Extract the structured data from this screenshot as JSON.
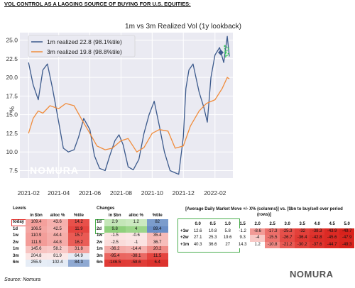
{
  "headline": "VOL CONTROL AS A LAGGING SOURCE OF BUYING FOR U.S. EQUITIES:",
  "watermark": "NOMURA",
  "chart_data": {
    "type": "line",
    "title": "1m vs 3m Realized Vol (1y lookback)",
    "ylabel": "%",
    "xlabel": "",
    "x_tick_labels": [
      "2021-02",
      "2021-04",
      "2021-06",
      "2021-08",
      "2021-10",
      "2021-12",
      "2022-02"
    ],
    "y_ticks": [
      7.5,
      10.0,
      12.5,
      15.0,
      17.5,
      20.0,
      22.5,
      25.0
    ],
    "ylim": [
      6.5,
      26.0
    ],
    "grid": true,
    "legend_position": "top-left",
    "series": [
      {
        "name": "1m realized 22.8 (98.1%tile)",
        "color": "#3c5a8c",
        "points": [
          [
            "2021-02-01",
            22.0
          ],
          [
            "2021-02-10",
            19.0
          ],
          [
            "2021-02-20",
            17.0
          ],
          [
            "2021-03-01",
            21.0
          ],
          [
            "2021-03-10",
            21.8
          ],
          [
            "2021-03-20",
            18.5
          ],
          [
            "2021-04-01",
            14.0
          ],
          [
            "2021-04-10",
            10.5
          ],
          [
            "2021-04-20",
            10.0
          ],
          [
            "2021-05-01",
            10.3
          ],
          [
            "2021-05-10",
            12.0
          ],
          [
            "2021-05-20",
            14.5
          ],
          [
            "2021-06-01",
            13.0
          ],
          [
            "2021-06-10",
            9.5
          ],
          [
            "2021-06-20",
            7.8
          ],
          [
            "2021-07-01",
            7.5
          ],
          [
            "2021-07-10",
            9.5
          ],
          [
            "2021-07-20",
            11.5
          ],
          [
            "2021-07-28",
            12.3
          ],
          [
            "2021-08-05",
            11.0
          ],
          [
            "2021-08-15",
            8.0
          ],
          [
            "2021-08-25",
            7.6
          ],
          [
            "2021-09-05",
            9.0
          ],
          [
            "2021-09-15",
            12.5
          ],
          [
            "2021-09-25",
            15.0
          ],
          [
            "2021-10-05",
            16.8
          ],
          [
            "2021-10-15",
            13.5
          ],
          [
            "2021-10-25",
            10.0
          ],
          [
            "2021-11-05",
            7.5
          ],
          [
            "2021-11-15",
            7.2
          ],
          [
            "2021-11-22",
            7.0
          ],
          [
            "2021-12-01",
            12.0
          ],
          [
            "2021-12-06",
            18.5
          ],
          [
            "2021-12-12",
            21.0
          ],
          [
            "2021-12-20",
            21.8
          ],
          [
            "2022-01-01",
            18.0
          ],
          [
            "2022-01-10",
            16.0
          ],
          [
            "2022-01-17",
            14.0
          ],
          [
            "2022-01-24",
            20.0
          ],
          [
            "2022-02-01",
            23.0
          ],
          [
            "2022-02-10",
            24.0
          ],
          [
            "2022-02-18",
            22.0
          ],
          [
            "2022-02-25",
            25.5
          ],
          [
            "2022-03-01",
            22.8
          ]
        ]
      },
      {
        "name": "3m realized 19.8 (98.8%tile)",
        "color": "#f08c3c",
        "points": [
          [
            "2021-02-01",
            12.5
          ],
          [
            "2021-02-10",
            14.5
          ],
          [
            "2021-02-20",
            15.5
          ],
          [
            "2021-03-01",
            15.2
          ],
          [
            "2021-03-15",
            16.2
          ],
          [
            "2021-04-01",
            15.8
          ],
          [
            "2021-04-15",
            16.5
          ],
          [
            "2021-05-01",
            16.2
          ],
          [
            "2021-05-15",
            14.5
          ],
          [
            "2021-06-01",
            12.5
          ],
          [
            "2021-06-15",
            10.8
          ],
          [
            "2021-07-01",
            10.3
          ],
          [
            "2021-07-15",
            10.5
          ],
          [
            "2021-08-01",
            11.5
          ],
          [
            "2021-08-15",
            11.8
          ],
          [
            "2021-09-01",
            10.0
          ],
          [
            "2021-09-15",
            10.6
          ],
          [
            "2021-10-01",
            12.5
          ],
          [
            "2021-10-15",
            13.0
          ],
          [
            "2021-11-01",
            12.8
          ],
          [
            "2021-11-15",
            10.5
          ],
          [
            "2021-12-01",
            10.8
          ],
          [
            "2021-12-15",
            13.5
          ],
          [
            "2022-01-01",
            15.5
          ],
          [
            "2022-01-15",
            16.5
          ],
          [
            "2022-02-01",
            17.0
          ],
          [
            "2022-02-15",
            18.5
          ],
          [
            "2022-02-25",
            20.0
          ],
          [
            "2022-03-01",
            19.8
          ]
        ]
      }
    ]
  },
  "levels": {
    "caption": "Levels",
    "headers": [
      "in $bn",
      "alloc %",
      "%tile"
    ],
    "rows": [
      {
        "label": "today",
        "values": [
          "109.4",
          "43.6",
          "14.2"
        ],
        "colors": [
          "#f4a09c",
          "#f6b0ad",
          "#e8504a"
        ]
      },
      {
        "label": "1d",
        "values": [
          "106.5",
          "42.5",
          "11.9"
        ],
        "colors": [
          "#f4a6a2",
          "#f6b3b0",
          "#e5443f"
        ]
      },
      {
        "label": "1w",
        "values": [
          "110.9",
          "44.4",
          "15.7"
        ],
        "colors": [
          "#f39e9a",
          "#f5ada9",
          "#ea5a54"
        ]
      },
      {
        "label": "2w",
        "values": [
          "111.9",
          "44.8",
          "16.2"
        ],
        "colors": [
          "#f39c98",
          "#f5aba8",
          "#ea5d57"
        ]
      },
      {
        "label": "1m",
        "values": [
          "145.6",
          "58.2",
          "31.8"
        ],
        "colors": [
          "#f7c4c1",
          "#f8cac8",
          "#f4a29e"
        ]
      },
      {
        "label": "3m",
        "values": [
          "204.8",
          "81.9",
          "64.9"
        ],
        "colors": [
          "#fbe6e5",
          "#fbe8e7",
          "#e6ecf5"
        ]
      },
      {
        "label": "6m",
        "values": [
          "255.9",
          "102.4",
          "84.3"
        ],
        "colors": [
          "#e6edf6",
          "#e4ebf5",
          "#8fa9d2"
        ]
      }
    ]
  },
  "changes": {
    "caption": "Changes",
    "headers": [
      "in $bn",
      "alloc %",
      "%tile"
    ],
    "rows": [
      {
        "label": "1d",
        "values": [
          "2.9",
          "1.2",
          "82"
        ],
        "colors": [
          "#c4e6b8",
          "#cbe9c0",
          "#7b9ccc"
        ]
      },
      {
        "label": "2d",
        "values": [
          "9.8",
          "4",
          "89.4"
        ],
        "colors": [
          "#8fd07c",
          "#9dd68b",
          "#6a8ec6"
        ]
      },
      {
        "label": "1w",
        "values": [
          "-1.5",
          "-0.6",
          "35.4"
        ],
        "colors": [
          "#fbe3e2",
          "#fbe6e5",
          "#f6bab7"
        ]
      },
      {
        "label": "2w",
        "values": [
          "-2.5",
          "-1",
          "36.7"
        ],
        "colors": [
          "#fadcda",
          "#fbe2e1",
          "#f6bdba"
        ]
      },
      {
        "label": "1m",
        "values": [
          "-36.2",
          "-14.4",
          "20.2"
        ],
        "colors": [
          "#f4aaa6",
          "#f5b0ad",
          "#ef8a85"
        ]
      },
      {
        "label": "3m",
        "values": [
          "-95.4",
          "-38.1",
          "11.5"
        ],
        "colors": [
          "#ea6560",
          "#ea6863",
          "#e5443f"
        ]
      },
      {
        "label": "6m",
        "values": [
          "-146.5",
          "-58.6",
          "6.4"
        ],
        "colors": [
          "#e03a35",
          "#e03c37",
          "#dc322d"
        ]
      }
    ]
  },
  "market_move": {
    "title": "[Average Daily Market Move +/- X% (columns)] vs. [$bn to buy/sell over period (rows)]",
    "headers": [
      "0.0",
      "0.5",
      "1.0",
      "1.5",
      "2.0",
      "2.5",
      "3.0",
      "3.5",
      "4.0",
      "4.5",
      "5.0"
    ],
    "rows": [
      {
        "label": "+1w",
        "values": [
          "12.6",
          "10.8",
          "5.8",
          "-1.2",
          "-8.6",
          "-17.3",
          "-25.3",
          "-32",
          "-38.3",
          "-43.9",
          "-49.7"
        ],
        "colors": [
          "#ffffff",
          "#ffffff",
          "#ffffff",
          "#ffffff",
          "#f29a96",
          "#ec6e69",
          "#e6504a",
          "#e3403a",
          "#df342e",
          "#dc2a24",
          "#d9221c"
        ]
      },
      {
        "label": "+2w",
        "values": [
          "27.1",
          "25.3",
          "19.6",
          "9.3",
          "-4",
          "-15.5",
          "-26.7",
          "-36.4",
          "-42.8",
          "-45.6",
          "-47.9"
        ],
        "colors": [
          "#ffffff",
          "#ffffff",
          "#ffffff",
          "#ffffff",
          "#f8c9c6",
          "#ed736e",
          "#e54c46",
          "#e13a34",
          "#dd2f29",
          "#dc2b25",
          "#da261f"
        ]
      },
      {
        "label": "+1m",
        "values": [
          "40.3",
          "36.6",
          "27",
          "14.3",
          "1.2",
          "-10.8",
          "-21.2",
          "-30.2",
          "-37.6",
          "-44.7",
          "-49.3"
        ],
        "colors": [
          "#ffffff",
          "#ffffff",
          "#ffffff",
          "#ffffff",
          "#ffffff",
          "#f08a85",
          "#e85a54",
          "#e3443e",
          "#df352f",
          "#dc2a24",
          "#d9231c"
        ]
      }
    ]
  },
  "source": "Source: Nomura",
  "logo_text": "NOMURA"
}
